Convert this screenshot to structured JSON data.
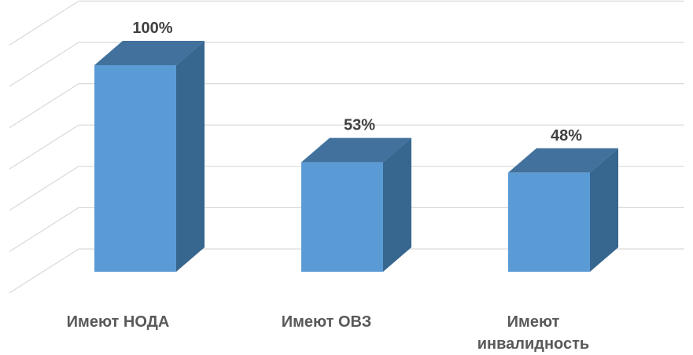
{
  "chart_data": {
    "type": "bar",
    "style": "3d-column",
    "categories": [
      "Имеют НОДА",
      "Имеют ОВЗ",
      "Имеют инвалидность"
    ],
    "category_lines": [
      [
        "Имеют НОДА"
      ],
      [
        "Имеют ОВЗ"
      ],
      [
        "Имеют",
        "инвалидность"
      ]
    ],
    "values": [
      100,
      53,
      48
    ],
    "data_labels": [
      "100%",
      "53%",
      "48%"
    ],
    "ylim": [
      0,
      120
    ],
    "grid": true,
    "colors": {
      "front": "#5b9bd5",
      "top": "#41719c",
      "side": "#37668f",
      "grid": "#d9d9d9",
      "label": "#404040",
      "category": "#595959"
    }
  }
}
